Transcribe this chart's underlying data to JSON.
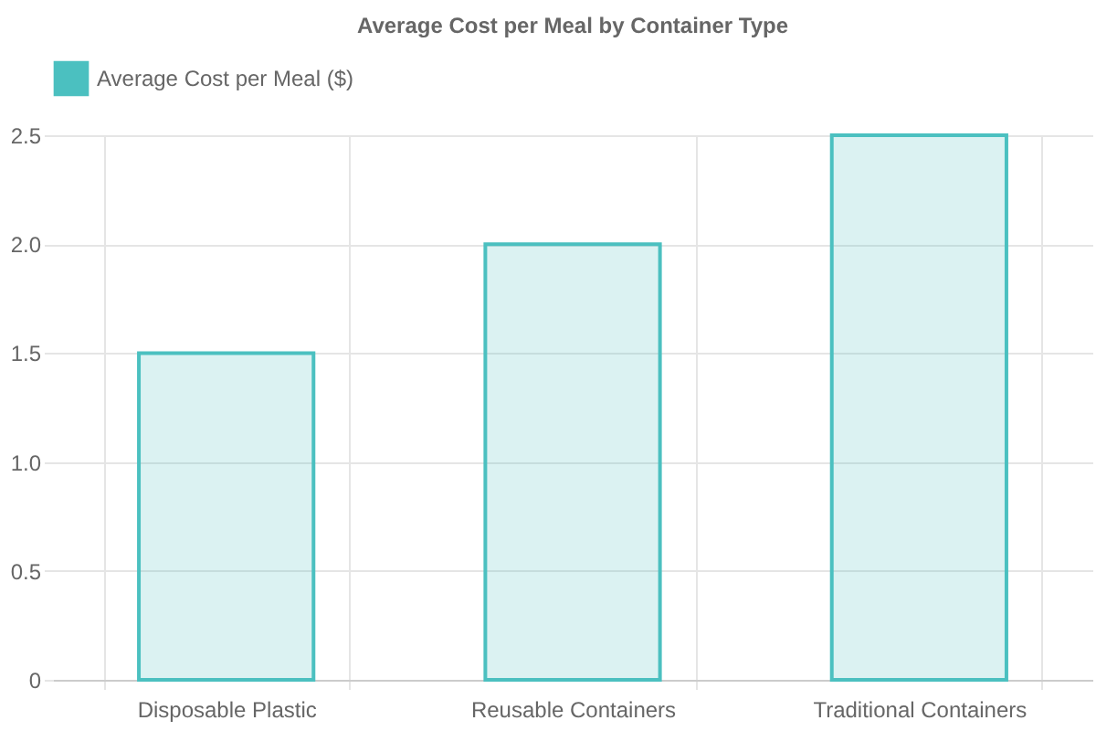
{
  "chart_data": {
    "type": "bar",
    "title": "Average Cost per Meal by Container Type",
    "categories": [
      "Disposable Plastic",
      "Reusable Containers",
      "Traditional Containers"
    ],
    "series": [
      {
        "name": "Average Cost per Meal ($)",
        "color": "#4bc0c0",
        "values": [
          1.5,
          2.0,
          2.5
        ]
      }
    ],
    "ylim": [
      0,
      2.5
    ],
    "yticks": [
      0,
      0.5,
      {
        "value": 1,
        "label": "1.0"
      },
      1.5,
      {
        "value": 2,
        "label": "2.0"
      },
      2.5
    ],
    "grid": true,
    "legend": "top"
  }
}
